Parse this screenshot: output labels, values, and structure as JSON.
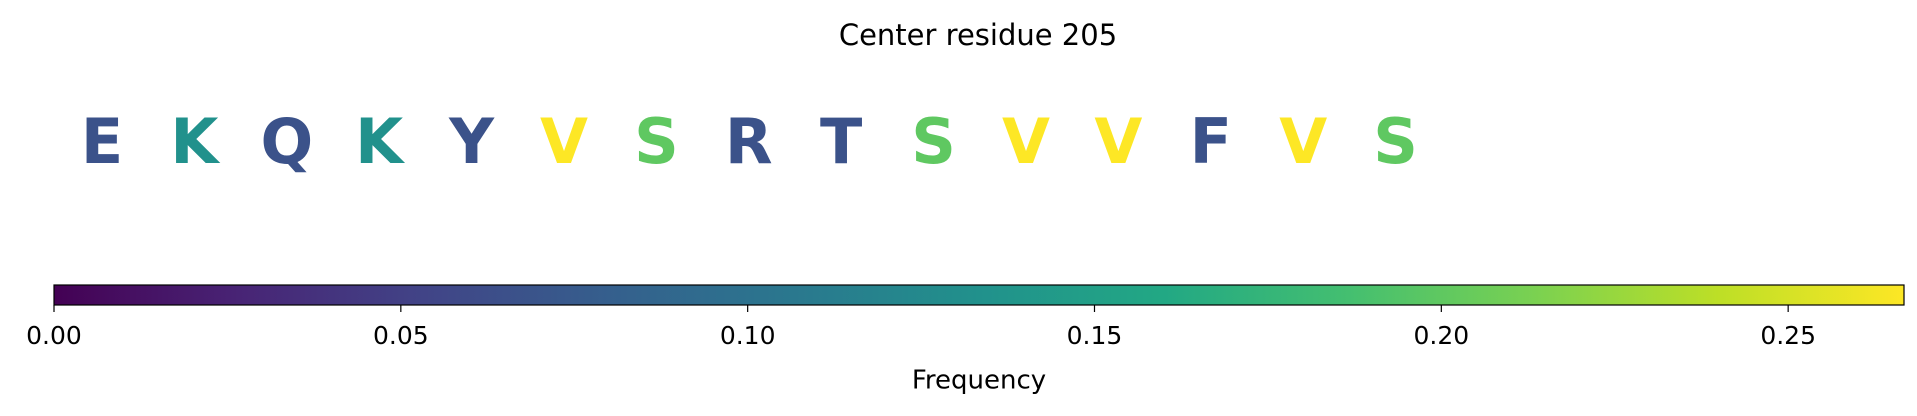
{
  "chart_data": {
    "type": "colorbar",
    "title": "Center residue 205",
    "categories": [
      "E",
      "K",
      "Q",
      "K",
      "Y",
      "V",
      "S",
      "R",
      "T",
      "S",
      "V",
      "V",
      "F",
      "V",
      "S"
    ],
    "values": [
      0.0667,
      0.1333,
      0.0667,
      0.1333,
      0.0667,
      0.2667,
      0.2,
      0.0667,
      0.0667,
      0.2,
      0.2667,
      0.2667,
      0.0667,
      0.2667,
      0.2
    ],
    "colormap": "viridis",
    "xlabel": "Frequency",
    "xlim": [
      0,
      0.2667
    ],
    "xticks": [
      {
        "value": 0,
        "label": "0.00"
      },
      {
        "value": 0.05,
        "label": "0.05"
      },
      {
        "value": 0.1,
        "label": "0.10"
      },
      {
        "value": 0.15,
        "label": "0.15"
      },
      {
        "value": 0.2,
        "label": "0.20"
      },
      {
        "value": 0.25,
        "label": "0.25"
      }
    ]
  }
}
